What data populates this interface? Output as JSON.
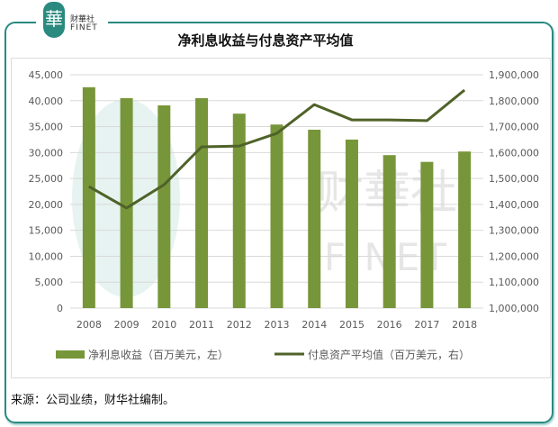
{
  "logo": {
    "seal": "華",
    "cn": "财華社",
    "en": "FINET"
  },
  "watermark": {
    "cn": "财華社",
    "en": "FINET"
  },
  "source": "来源：公司业绩，财华社编制。",
  "chart_data": {
    "type": "bar+line",
    "title": "净利息收益与付息资产平均值",
    "categories": [
      "2008",
      "2009",
      "2010",
      "2011",
      "2012",
      "2013",
      "2014",
      "2015",
      "2016",
      "2017",
      "2018"
    ],
    "series": [
      {
        "name": "净利息收益（百万美元，左）",
        "type": "bar",
        "axis": "left",
        "color": "#77963a",
        "values": [
          42600,
          40500,
          39100,
          40500,
          37500,
          35400,
          34400,
          32500,
          29500,
          28200,
          30200
        ]
      },
      {
        "name": "付息资产平均值（百万美元，右）",
        "type": "line",
        "axis": "right",
        "color": "#4f6228",
        "values": [
          1469000,
          1386000,
          1476000,
          1622000,
          1625000,
          1674000,
          1785000,
          1726000,
          1726000,
          1723000,
          1841000
        ]
      }
    ],
    "left_axis": {
      "min": 0,
      "max": 45000,
      "step": 5000,
      "ticks": [
        "0",
        "5,000",
        "10,000",
        "15,000",
        "20,000",
        "25,000",
        "30,000",
        "35,000",
        "40,000",
        "45,000"
      ]
    },
    "right_axis": {
      "min": 1000000,
      "max": 1900000,
      "step": 100000,
      "ticks": [
        "1,000,000",
        "1,100,000",
        "1,200,000",
        "1,300,000",
        "1,400,000",
        "1,500,000",
        "1,600,000",
        "1,700,000",
        "1,800,000",
        "1,900,000"
      ]
    },
    "grid": true,
    "legend": "bottom"
  }
}
